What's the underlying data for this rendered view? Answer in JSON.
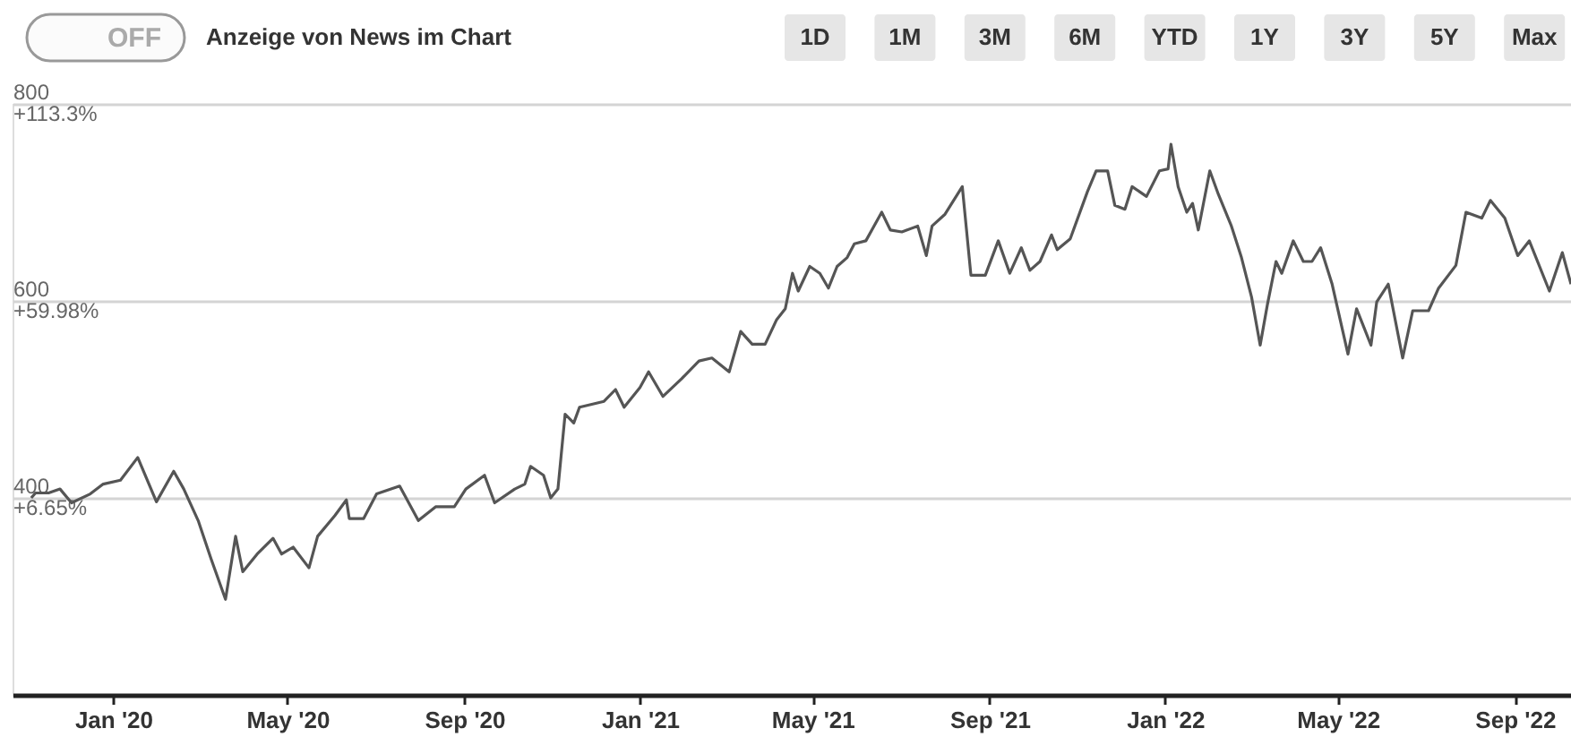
{
  "chart_data": {
    "type": "line",
    "annotations": [
      "OFF",
      "Anzeige von News im Chart",
      "1D",
      "1M",
      "3M",
      "6M",
      "YTD",
      "1Y",
      "3Y",
      "5Y",
      "Max"
    ],
    "x": [
      "2019-11-05",
      "2019-11-08",
      "2019-11-17",
      "2019-11-25",
      "2019-12-03",
      "2019-12-16",
      "2019-12-25",
      "2020-01-06",
      "2020-01-18",
      "2020-01-31",
      "2020-02-12",
      "2020-02-19",
      "2020-02-29",
      "2020-03-09",
      "2020-03-19",
      "2020-03-26",
      "2020-03-31",
      "2020-04-10",
      "2020-04-21",
      "2020-04-27",
      "2020-05-05",
      "2020-05-16",
      "2020-05-22",
      "2020-06-03",
      "2020-06-11",
      "2020-06-13",
      "2020-06-23",
      "2020-07-02",
      "2020-07-18",
      "2020-07-31",
      "2020-08-12",
      "2020-08-25",
      "2020-09-02",
      "2020-09-15",
      "2020-09-22",
      "2020-10-06",
      "2020-10-13",
      "2020-10-17",
      "2020-10-26",
      "2020-10-31",
      "2020-11-05",
      "2020-11-10",
      "2020-11-16",
      "2020-11-20",
      "2020-12-07",
      "2020-12-15",
      "2020-12-21",
      "2021-01-01",
      "2021-01-07",
      "2021-01-17",
      "2021-01-30",
      "2021-02-11",
      "2021-02-20",
      "2021-03-04",
      "2021-03-12",
      "2021-03-20",
      "2021-03-29",
      "2021-04-06",
      "2021-04-12",
      "2021-04-17",
      "2021-04-21",
      "2021-04-29",
      "2021-05-06",
      "2021-05-12",
      "2021-05-18",
      "2021-05-25",
      "2021-05-30",
      "2021-06-07",
      "2021-06-18",
      "2021-06-24",
      "2021-07-02",
      "2021-07-13",
      "2021-07-19",
      "2021-07-23",
      "2021-08-01",
      "2021-08-13",
      "2021-08-19",
      "2021-08-29",
      "2021-09-07",
      "2021-09-15",
      "2021-09-23",
      "2021-09-29",
      "2021-10-06",
      "2021-10-14",
      "2021-10-18",
      "2021-10-27",
      "2021-11-08",
      "2021-11-14",
      "2021-11-22",
      "2021-11-27",
      "2021-12-04",
      "2021-12-09",
      "2021-12-19",
      "2021-12-28",
      "2022-01-03",
      "2022-01-05",
      "2022-01-10",
      "2022-01-16",
      "2022-01-20",
      "2022-01-24",
      "2022-02-01",
      "2022-02-07",
      "2022-02-16",
      "2022-02-23",
      "2022-03-02",
      "2022-03-08",
      "2022-03-13",
      "2022-03-19",
      "2022-03-23",
      "2022-03-31",
      "2022-04-07",
      "2022-04-13",
      "2022-04-19",
      "2022-04-27",
      "2022-05-08",
      "2022-05-14",
      "2022-05-24",
      "2022-05-28",
      "2022-06-05",
      "2022-06-15",
      "2022-06-22",
      "2022-07-03",
      "2022-07-10",
      "2022-07-22",
      "2022-07-29",
      "2022-08-09",
      "2022-08-15",
      "2022-08-25",
      "2022-09-03",
      "2022-09-11",
      "2022-09-25",
      "2022-10-04",
      "2022-10-10"
    ],
    "series": [
      {
        "color": "#555555",
        "values": [
          400,
          405,
          405,
          409,
          395,
          404,
          414,
          418,
          441,
          396,
          427,
          409,
          377,
          338,
          297,
          361,
          325,
          343,
          359,
          343,
          350,
          329,
          361,
          382,
          398,
          379,
          379,
          404,
          412,
          377,
          391,
          391,
          409,
          423,
          395,
          409,
          414,
          432,
          423,
          400,
          409,
          485,
          476,
          492,
          498,
          510,
          492,
          512,
          528,
          503,
          521,
          539,
          542,
          528,
          569,
          556,
          556,
          581,
          592,
          628,
          610,
          635,
          628,
          613,
          635,
          644,
          658,
          661,
          690,
          672,
          670,
          676,
          646,
          676,
          688,
          716,
          626,
          626,
          661,
          628,
          654,
          631,
          640,
          667,
          652,
          663,
          711,
          732,
          732,
          697,
          693,
          716,
          706,
          732,
          734,
          759,
          716,
          690,
          699,
          672,
          732,
          708,
          676,
          644,
          604,
          555,
          596,
          640,
          628,
          661,
          640,
          640,
          654,
          617,
          546,
          592,
          555,
          599,
          617,
          542,
          590,
          590,
          613,
          636,
          690,
          684,
          702,
          684,
          646,
          661,
          610,
          649,
          617
        ]
      }
    ],
    "xlim": [
      "2019-10-23",
      "2022-10-10"
    ],
    "xticks": [
      {
        "value": "2020-01-01",
        "label": "Jan '20"
      },
      {
        "value": "2020-05-01",
        "label": "May '20"
      },
      {
        "value": "2020-09-01",
        "label": "Sep '20"
      },
      {
        "value": "2021-01-01",
        "label": "Jan '21"
      },
      {
        "value": "2021-05-01",
        "label": "May '21"
      },
      {
        "value": "2021-09-01",
        "label": "Sep '21"
      },
      {
        "value": "2022-01-01",
        "label": "Jan '22"
      },
      {
        "value": "2022-05-01",
        "label": "May '22"
      },
      {
        "value": "2022-09-01",
        "label": "Sep '22"
      }
    ],
    "ylim": [
      200,
      800
    ],
    "yticks": [
      400,
      600,
      800
    ],
    "y2lim": [
      -46.67,
      113.3
    ],
    "y2ticks": [
      {
        "value": 6.65,
        "label": "+6.65%"
      },
      {
        "value": 59.98,
        "label": "+59.98%"
      },
      {
        "value": 113.3,
        "label": "+113.3%"
      }
    ],
    "grid": "y"
  }
}
